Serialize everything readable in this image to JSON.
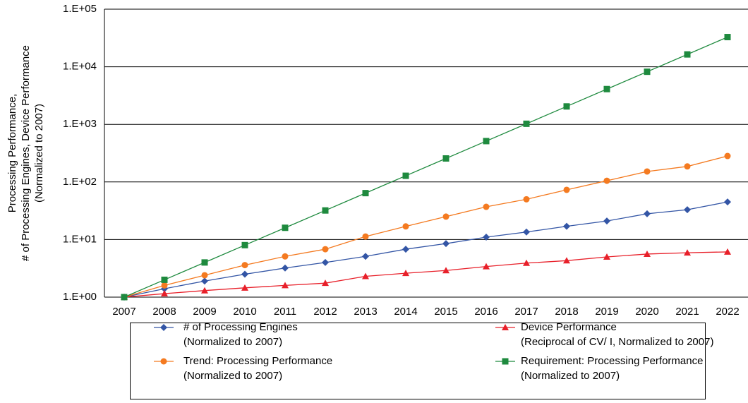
{
  "chart_data": {
    "type": "line",
    "y_label": [
      "Processing Performance,",
      "# of Processing Engines, Device Performance",
      "(Normalized to 2007)"
    ],
    "categories": [
      "2007",
      "2008",
      "2009",
      "2010",
      "2011",
      "2012",
      "2013",
      "2014",
      "2015",
      "2016",
      "2017",
      "2018",
      "2019",
      "2020",
      "2021",
      "2022"
    ],
    "log_y": true,
    "grid": true,
    "ylim": [
      1,
      100000
    ],
    "yticks": [
      {
        "value": 1,
        "label": "1.E+00"
      },
      {
        "value": 10,
        "label": "1.E+01"
      },
      {
        "value": 100,
        "label": "1.E+02"
      },
      {
        "value": 1000,
        "label": "1.E+03"
      },
      {
        "value": 10000,
        "label": "1.E+04"
      },
      {
        "value": 100000,
        "label": "1.E+05"
      }
    ],
    "legend": "bottom",
    "series": [
      {
        "name": "# of Processing Engines\n(Normalized to 2007)",
        "color": "#3355a5",
        "marker": "diamond",
        "values": [
          1,
          1.4,
          1.9,
          2.5,
          3.2,
          4.0,
          5.1,
          6.8,
          8.5,
          11,
          13.5,
          17,
          21,
          28,
          33,
          45
        ]
      },
      {
        "name": "Device Performance\n(Reciprocal of CV/ I, Normalized to 2007)",
        "color": "#e8202a",
        "marker": "triangle",
        "values": [
          1,
          1.15,
          1.3,
          1.45,
          1.6,
          1.75,
          2.3,
          2.6,
          2.9,
          3.4,
          3.9,
          4.3,
          5.0,
          5.6,
          5.9,
          6.1
        ]
      },
      {
        "name": "Trend: Processing Performance\n(Normalized to 2007)",
        "color": "#f47a20",
        "marker": "circle",
        "values": [
          1,
          1.6,
          2.4,
          3.6,
          5.1,
          6.8,
          11.3,
          16.9,
          25,
          37,
          50,
          73,
          105,
          152,
          186,
          282
        ]
      },
      {
        "name": "Requirement: Processing Performance\n(Normalized to 2007)",
        "color": "#1e8a3e",
        "marker": "square",
        "values": [
          1,
          2,
          4,
          8,
          16,
          32,
          64,
          128,
          256,
          512,
          1024,
          2048,
          4096,
          8192,
          16384,
          32768
        ]
      }
    ]
  }
}
